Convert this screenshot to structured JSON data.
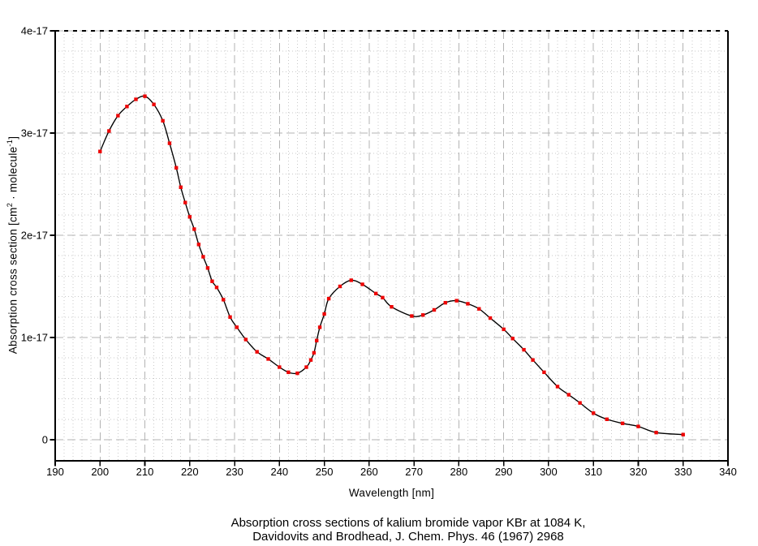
{
  "window": {
    "background": "#ffffff"
  },
  "chart_data": {
    "type": "line",
    "title_line1": "Absorption cross sections of kalium bromide vapor KBr at 1084 K,",
    "title_line2": "Davidovits and Brodhead, J. Chem. Phys. 46 (1967) 2968",
    "xlabel": "Wavelength [nm]",
    "ylabel_parts": [
      "Absorption cross section [cm",
      "2",
      " · molecule",
      "-1",
      "]"
    ],
    "xlim": [
      190,
      340
    ],
    "ylim_e17": [
      0,
      4
    ],
    "x_major_step": 10,
    "x_minor_step": 2,
    "y_major_step_e17": 1,
    "y_minor_step_e17": 0.2,
    "grid": true,
    "legend": "none",
    "x_ticks": [
      {
        "value": 190,
        "label": "190"
      },
      {
        "value": 200,
        "label": "200"
      },
      {
        "value": 210,
        "label": "210"
      },
      {
        "value": 220,
        "label": "220"
      },
      {
        "value": 230,
        "label": "230"
      },
      {
        "value": 240,
        "label": "240"
      },
      {
        "value": 250,
        "label": "250"
      },
      {
        "value": 260,
        "label": "260"
      },
      {
        "value": 270,
        "label": "270"
      },
      {
        "value": 280,
        "label": "280"
      },
      {
        "value": 290,
        "label": "290"
      },
      {
        "value": 300,
        "label": "300"
      },
      {
        "value": 310,
        "label": "310"
      },
      {
        "value": 320,
        "label": "320"
      },
      {
        "value": 330,
        "label": "330"
      },
      {
        "value": 340,
        "label": "340"
      }
    ],
    "y_ticks": [
      {
        "value": 0,
        "label": "0"
      },
      {
        "value": 1,
        "label": "1e-17"
      },
      {
        "value": 2,
        "label": "2e-17"
      },
      {
        "value": 3,
        "label": "3e-17"
      },
      {
        "value": 4,
        "label": "4e-17"
      }
    ],
    "series": [
      {
        "name": "KBr absorption cross section",
        "y_scale": "1e-17 cm2/molecule",
        "marker": "red-square",
        "line_color": "#000000",
        "marker_color": "#ee0505",
        "points_nm_e17": [
          [
            200,
            2.82
          ],
          [
            202,
            3.02
          ],
          [
            204,
            3.17
          ],
          [
            206,
            3.26
          ],
          [
            208,
            3.33
          ],
          [
            210,
            3.36
          ],
          [
            212,
            3.28
          ],
          [
            214,
            3.12
          ],
          [
            215.5,
            2.9
          ],
          [
            217,
            2.66
          ],
          [
            218,
            2.47
          ],
          [
            219,
            2.32
          ],
          [
            220,
            2.18
          ],
          [
            221,
            2.06
          ],
          [
            222,
            1.91
          ],
          [
            223,
            1.79
          ],
          [
            224,
            1.68
          ],
          [
            225,
            1.55
          ],
          [
            226,
            1.49
          ],
          [
            227.5,
            1.37
          ],
          [
            229,
            1.2
          ],
          [
            230.5,
            1.1
          ],
          [
            232.5,
            0.98
          ],
          [
            235,
            0.86
          ],
          [
            237.5,
            0.79
          ],
          [
            240,
            0.71
          ],
          [
            242,
            0.66
          ],
          [
            244,
            0.65
          ],
          [
            246,
            0.71
          ],
          [
            247,
            0.78
          ],
          [
            247.7,
            0.85
          ],
          [
            248.3,
            0.97
          ],
          [
            249,
            1.1
          ],
          [
            250,
            1.23
          ],
          [
            251,
            1.38
          ],
          [
            253.5,
            1.5
          ],
          [
            256,
            1.56
          ],
          [
            258.5,
            1.52
          ],
          [
            261.5,
            1.43
          ],
          [
            263,
            1.39
          ],
          [
            265,
            1.3
          ],
          [
            269.5,
            1.21
          ],
          [
            272,
            1.22
          ],
          [
            274.5,
            1.27
          ],
          [
            277,
            1.34
          ],
          [
            279.5,
            1.36
          ],
          [
            282,
            1.33
          ],
          [
            284.5,
            1.28
          ],
          [
            287,
            1.19
          ],
          [
            290,
            1.08
          ],
          [
            292,
            0.99
          ],
          [
            294.5,
            0.88
          ],
          [
            296.5,
            0.78
          ],
          [
            299,
            0.66
          ],
          [
            302,
            0.52
          ],
          [
            304.5,
            0.44
          ],
          [
            307,
            0.36
          ],
          [
            310,
            0.26
          ],
          [
            313,
            0.2
          ],
          [
            316.5,
            0.16
          ],
          [
            320,
            0.13
          ],
          [
            324,
            0.07
          ],
          [
            330,
            0.05
          ]
        ]
      }
    ],
    "colors": {
      "axis": "#000000",
      "major_grid": "#b3b3b3",
      "minor_grid": "#c9c9c9",
      "curve": "#000000",
      "marker": "#ee0505",
      "top_border_dash": "#000000"
    }
  }
}
